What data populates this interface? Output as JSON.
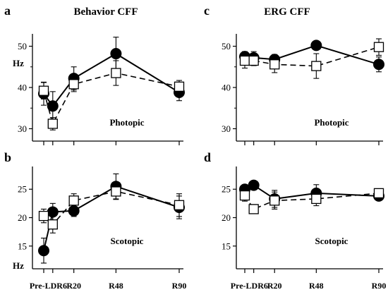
{
  "chart_data": [
    {
      "panel": "a",
      "type": "line",
      "title": "Behavior CFF",
      "ylabel": "Hz",
      "condition": "Photopic",
      "ylim": [
        27,
        53
      ],
      "yticks": [
        30,
        40,
        50
      ],
      "categories": [
        "Pre-L",
        "DR6",
        "R20",
        "R48",
        "R90"
      ],
      "x": [
        0,
        6,
        20,
        48,
        90
      ],
      "xtick_labels": [],
      "series": [
        {
          "marker": "filled-circle",
          "line": "solid",
          "values": [
            38.5,
            35.5,
            42.2,
            48.2,
            38.8
          ],
          "errors": [
            2.8,
            3.5,
            2.8,
            4.0,
            2.0
          ]
        },
        {
          "marker": "open-square",
          "line": "dashed",
          "values": [
            39.2,
            31.2,
            40.8,
            43.5,
            40.2
          ],
          "errors": [
            2.0,
            1.5,
            1.8,
            3.0,
            1.5
          ]
        }
      ]
    },
    {
      "panel": "b",
      "type": "line",
      "title": "",
      "ylabel": "Hz",
      "condition": "Scotopic",
      "ylim": [
        11,
        29
      ],
      "yticks": [
        15,
        20,
        25
      ],
      "categories": [
        "Pre-L",
        "DR6",
        "R20",
        "R48",
        "R90"
      ],
      "x": [
        0,
        6,
        20,
        48,
        90
      ],
      "xtick_labels": [
        "Pre-LDR6",
        "R20",
        "R48",
        "R90"
      ],
      "series": [
        {
          "marker": "filled-circle",
          "line": "solid",
          "values": [
            14.2,
            21.0,
            21.2,
            25.5,
            21.8
          ],
          "errors": [
            2.2,
            1.5,
            1.0,
            2.2,
            2.0
          ]
        },
        {
          "marker": "open-square",
          "line": "dashed",
          "values": [
            20.3,
            18.8,
            23.0,
            24.6,
            22.2
          ],
          "errors": [
            1.2,
            1.5,
            1.2,
            1.4,
            2.0
          ]
        }
      ]
    },
    {
      "panel": "c",
      "type": "line",
      "title": "ERG CFF",
      "ylabel": "",
      "condition": "Photopic",
      "ylim": [
        27,
        53
      ],
      "yticks": [
        30,
        40,
        50
      ],
      "categories": [
        "Pre-L",
        "DR6",
        "R20",
        "R48",
        "R90"
      ],
      "x": [
        0,
        6,
        20,
        48,
        90
      ],
      "xtick_labels": [],
      "series": [
        {
          "marker": "filled-circle",
          "line": "solid",
          "values": [
            47.5,
            47.2,
            46.8,
            50.2,
            45.6
          ],
          "errors": [
            1.2,
            1.5,
            1.2,
            0.5,
            1.8
          ]
        },
        {
          "marker": "open-square",
          "line": "dashed",
          "values": [
            46.5,
            46.5,
            45.6,
            45.2,
            49.8
          ],
          "errors": [
            1.8,
            1.2,
            2.0,
            3.0,
            2.0
          ]
        }
      ]
    },
    {
      "panel": "d",
      "type": "line",
      "title": "",
      "ylabel": "",
      "condition": "Scotopic",
      "ylim": [
        11,
        29
      ],
      "yticks": [
        15,
        20,
        25
      ],
      "categories": [
        "Pre-L",
        "DR6",
        "R20",
        "R48",
        "R90"
      ],
      "x": [
        0,
        6,
        20,
        48,
        90
      ],
      "xtick_labels": [
        "Pre-LDR6",
        "R20",
        "R48",
        "R90"
      ],
      "series": [
        {
          "marker": "filled-circle",
          "line": "solid",
          "values": [
            25.0,
            25.7,
            23.3,
            24.3,
            23.8
          ],
          "errors": [
            0.8,
            0.5,
            1.5,
            1.5,
            0.5
          ]
        },
        {
          "marker": "open-square",
          "line": "dashed",
          "values": [
            23.9,
            21.5,
            23.0,
            23.3,
            24.3
          ],
          "errors": [
            1.0,
            0.8,
            1.5,
            1.2,
            0.5
          ]
        }
      ]
    }
  ],
  "colors": {
    "ink": "#000000",
    "open_fill": "#ffffff"
  }
}
